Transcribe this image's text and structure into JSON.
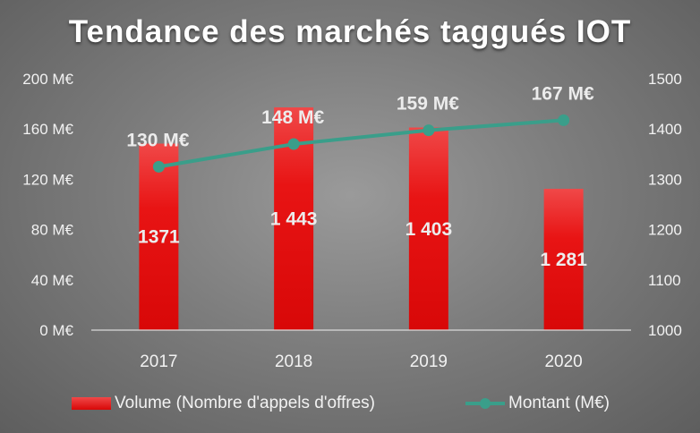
{
  "chart_data": {
    "type": "bar",
    "title": "Tendance des marchés taggués IOT",
    "categories": [
      "2017",
      "2018",
      "2019",
      "2020"
    ],
    "left_axis": {
      "ticks": [
        "0 M€",
        "40 M€",
        "80 M€",
        "120 M€",
        "160 M€",
        "200 M€"
      ],
      "ylim": [
        0,
        200
      ]
    },
    "right_axis": {
      "ticks": [
        "1000",
        "1100",
        "1200",
        "1300",
        "1400",
        "1500"
      ],
      "ylim": [
        1000,
        1500
      ]
    },
    "series": [
      {
        "name": "Volume (Nombre d'appels d'offres)",
        "type": "bar",
        "axis": "right",
        "values": [
          1371,
          1443,
          1403,
          1281
        ],
        "labels": [
          "1371",
          "1 443",
          "1 403",
          "1 281"
        ],
        "color": "#e81010"
      },
      {
        "name": "Montant (M€)",
        "type": "line",
        "axis": "left",
        "values": [
          130,
          148,
          159,
          167
        ],
        "labels": [
          "130 M€",
          "148 M€",
          "159 M€",
          "167 M€"
        ],
        "color": "#3a9e8a"
      }
    ],
    "grid": false,
    "legend": "bottom"
  }
}
